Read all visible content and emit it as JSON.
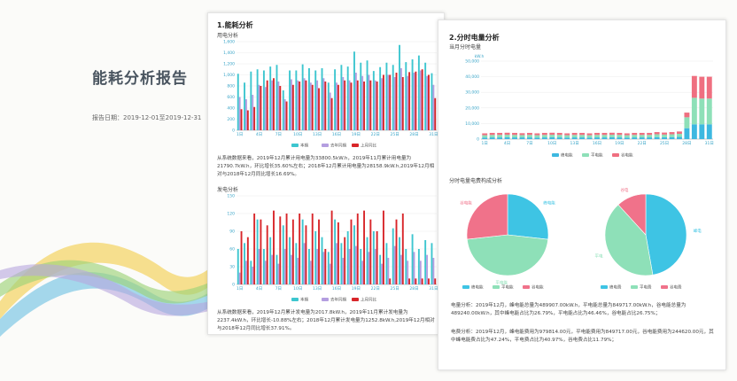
{
  "cover": {
    "title": "能耗分析报告",
    "date": "报告日期：2019-12-01至2019-12-31"
  },
  "page1": {
    "section_title": "1.能耗分析",
    "usage_subtitle": "用电分析",
    "usage_paragraph": "从系统数据来看，2019年12月累计用电量为33800.5kW.h，2019年11月累计用电量为21790.7kW.h，环比增长35.60%左右；2018年12月累计用电量为28158.9kW.h,2019年12月相对与2018年12月同比增长16.69%。",
    "gen_subtitle": "发电分析",
    "gen_paragraph": "从系统数据来看，2019年12月累计发电量为2017.8kW.h，2019年11月累计发电量为2237.4kW.h，环比增长-10.88%左右；2018年12月累计发电量为1252.8kW.h,2019年12月相对与2018年12月同比增长37.91%。"
  },
  "page2": {
    "section_title": "2.分时电量分析",
    "hourly_subtitle": "当月分时电量",
    "pie_subtitle": "分时电量电费构成分析",
    "elec_paragraph": "电量分析：2019年12月，峰电能总量为489907.00kW.h，平电能总量为849717.00kW.h，谷电能总量为489240.00kW.h，其中峰电能占比为26.79%，平电能占比为46.46%，谷电能占比26.75%；",
    "fee_paragraph": "电费分析：2019年12月，峰电能费用为979814.00元，平电能费用为849717.00元，谷电能费用为244620.00元，其中峰电能费占比为47.24%，平电费占比为40.97%，谷电费占比11.79%；"
  },
  "chart_data": [
    {
      "id": "usage",
      "type": "bar",
      "categories": [
        "1日",
        "2日",
        "3日",
        "4日",
        "5日",
        "6日",
        "7日",
        "8日",
        "9日",
        "10日",
        "11日",
        "12日",
        "13日",
        "14日",
        "15日",
        "16日",
        "17日",
        "18日",
        "19日",
        "20日",
        "21日",
        "22日",
        "23日",
        "24日",
        "25日",
        "26日",
        "27日",
        "28日",
        "29日",
        "30日",
        "31日"
      ],
      "ylim": [
        0,
        1600
      ],
      "yticks": [
        0,
        200,
        400,
        600,
        800,
        1000,
        1200,
        1400,
        1600
      ],
      "xticks": [
        "1日",
        "4日",
        "7日",
        "10日",
        "13日",
        "16日",
        "19日",
        "22日",
        "25日",
        "28日",
        "31日"
      ],
      "series": [
        {
          "name": "本期",
          "color": "#3dc6cf",
          "values": [
            1020,
            860,
            1060,
            1100,
            1080,
            1150,
            1180,
            720,
            1080,
            1080,
            1190,
            1120,
            1080,
            1120,
            860,
            1100,
            1180,
            1150,
            1420,
            1220,
            1260,
            1070,
            1140,
            1220,
            1180,
            1540,
            1230,
            1280,
            1350,
            1220,
            1030
          ]
        },
        {
          "name": "去年同期",
          "color": "#b49ee0",
          "values": [
            600,
            560,
            640,
            820,
            780,
            900,
            880,
            560,
            920,
            900,
            940,
            860,
            900,
            940,
            680,
            860,
            960,
            900,
            1040,
            980,
            1000,
            900,
            940,
            1000,
            960,
            1120,
            980,
            1040,
            1080,
            980,
            820
          ]
        },
        {
          "name": "上月同比",
          "color": "#d8262a",
          "values": [
            380,
            360,
            420,
            800,
            900,
            940,
            800,
            520,
            820,
            880,
            900,
            820,
            760,
            880,
            580,
            820,
            900,
            860,
            900,
            880,
            900,
            880,
            1000,
            1000,
            1040,
            960,
            1050,
            1060,
            1100,
            1000,
            580
          ]
        }
      ]
    },
    {
      "id": "generation",
      "type": "bar",
      "categories": [
        "1日",
        "2日",
        "3日",
        "4日",
        "5日",
        "6日",
        "7日",
        "8日",
        "9日",
        "10日",
        "11日",
        "12日",
        "13日",
        "14日",
        "15日",
        "16日",
        "17日",
        "18日",
        "19日",
        "20日",
        "21日",
        "22日",
        "23日",
        "24日",
        "25日",
        "26日",
        "27日",
        "28日",
        "29日",
        "30日",
        "31日"
      ],
      "ylim": [
        0,
        150
      ],
      "yticks": [
        0,
        30,
        60,
        90,
        120,
        150
      ],
      "xticks": [
        "1日",
        "4日",
        "7日",
        "10日",
        "13日",
        "16日",
        "19日",
        "22日",
        "25日",
        "28日",
        "31日"
      ],
      "series": [
        {
          "name": "本期",
          "color": "#3dc6cf",
          "values": [
            60,
            70,
            40,
            110,
            60,
            80,
            50,
            100,
            80,
            70,
            110,
            60,
            90,
            80,
            55,
            110,
            70,
            90,
            100,
            60,
            80,
            90,
            50,
            70,
            95,
            80,
            60,
            85,
            60,
            75,
            70
          ]
        },
        {
          "name": "去年同期",
          "color": "#b49ee0",
          "values": [
            20,
            40,
            30,
            60,
            40,
            50,
            35,
            60,
            50,
            45,
            70,
            40,
            60,
            55,
            35,
            70,
            45,
            60,
            65,
            40,
            55,
            60,
            35,
            45,
            65,
            50,
            40,
            55,
            40,
            50,
            45
          ]
        },
        {
          "name": "上月同比",
          "color": "#d8262a",
          "values": [
            90,
            80,
            120,
            110,
            100,
            125,
            115,
            120,
            110,
            120,
            100,
            120,
            110,
            60,
            125,
            105,
            80,
            110,
            120,
            125,
            110,
            90,
            125,
            10,
            110,
            120,
            10,
            10,
            10,
            10,
            10
          ]
        }
      ]
    },
    {
      "id": "hourly",
      "type": "bar",
      "stacked": true,
      "categories": [
        "1日",
        "2日",
        "3日",
        "4日",
        "5日",
        "6日",
        "7日",
        "8日",
        "9日",
        "10日",
        "11日",
        "12日",
        "13日",
        "14日",
        "15日",
        "16日",
        "17日",
        "18日",
        "19日",
        "20日",
        "21日",
        "22日",
        "23日",
        "24日",
        "25日",
        "26日",
        "27日",
        "28日",
        "29日",
        "30日",
        "31日"
      ],
      "ylim": [
        0,
        50000
      ],
      "yticks": [
        0,
        10000,
        20000,
        30000,
        40000,
        50000
      ],
      "ytick_labels": [
        "0",
        "10,000",
        "20,000",
        "30,000",
        "40,000",
        "50,000"
      ],
      "y_unit": "kW.h",
      "xticks": [
        "1日",
        "4日",
        "7日",
        "10日",
        "13日",
        "16日",
        "19日",
        "22日",
        "25日",
        "28日",
        "31日"
      ],
      "series": [
        {
          "name": "峰电能",
          "color": "#3db8e0",
          "values": [
            1000,
            1100,
            1100,
            1200,
            1100,
            1100,
            1100,
            1000,
            1100,
            1200,
            1100,
            1000,
            1100,
            1100,
            1000,
            1100,
            1100,
            1200,
            1100,
            1000,
            1100,
            1100,
            1100,
            1300,
            1200,
            1300,
            1400,
            7000,
            9500,
            9500,
            9500
          ]
        },
        {
          "name": "平电能",
          "color": "#8ee0b8",
          "values": [
            1500,
            1600,
            1600,
            1600,
            1600,
            1500,
            1600,
            1500,
            1600,
            1600,
            1600,
            1500,
            1600,
            1600,
            1500,
            1600,
            1600,
            1600,
            1600,
            1500,
            1600,
            1600,
            1600,
            1800,
            1700,
            1800,
            2000,
            7000,
            17000,
            16500,
            16500
          ]
        },
        {
          "name": "谷电能",
          "color": "#ef6f80",
          "values": [
            1200,
            1300,
            1300,
            1300,
            1300,
            1200,
            1300,
            1200,
            1300,
            1300,
            1300,
            1200,
            1300,
            1300,
            1200,
            1300,
            1300,
            1300,
            1300,
            1200,
            1300,
            1300,
            1300,
            1400,
            1300,
            1400,
            1500,
            3000,
            14000,
            14000,
            14000
          ]
        }
      ]
    },
    {
      "id": "pie_energy",
      "type": "pie",
      "labels": [
        "峰电能",
        "平电能",
        "谷电能"
      ],
      "values": [
        26.79,
        46.46,
        26.75
      ],
      "colors": [
        "#3ec4e4",
        "#8ee0b8",
        "#f0728a"
      ]
    },
    {
      "id": "pie_fee",
      "type": "pie",
      "labels": [
        "峰电",
        "平电",
        "谷电"
      ],
      "legend_labels": [
        "峰电费",
        "平电费",
        "谷电费"
      ],
      "values": [
        47.24,
        40.97,
        11.79
      ],
      "colors": [
        "#3ec4e4",
        "#8ee0b8",
        "#f0728a"
      ]
    }
  ]
}
